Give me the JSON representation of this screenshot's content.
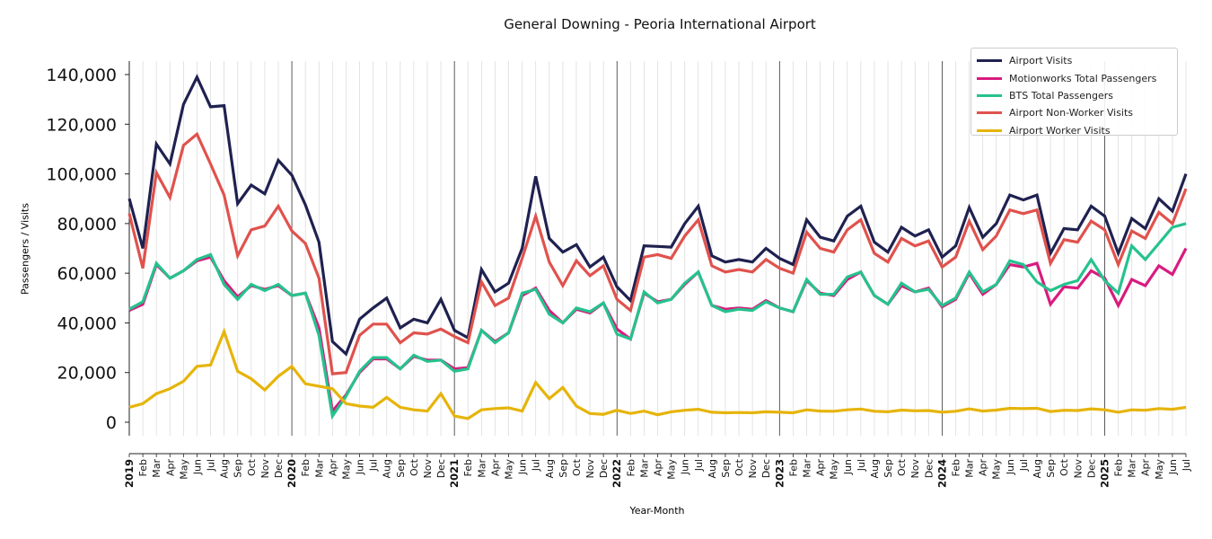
{
  "chart_data": {
    "type": "line",
    "title": "General Downing - Peoria International Airport",
    "xlabel": "Year-Month",
    "ylabel": "Passengers / Visits",
    "ylim": [
      -12000,
      145000
    ],
    "yticks": [
      0,
      20000,
      40000,
      60000,
      80000,
      100000,
      120000,
      140000
    ],
    "ytick_labels": [
      "0",
      "20,000",
      "40,000",
      "60,000",
      "80,000",
      "100,000",
      "120,000",
      "140,000"
    ],
    "start": {
      "year": 2019,
      "month": 1
    },
    "month_labels": [
      "Jan",
      "Feb",
      "Mar",
      "Apr",
      "May",
      "Jun",
      "Jul",
      "Aug",
      "Sep",
      "Oct",
      "Nov",
      "Dec"
    ],
    "legend_position": "top-right",
    "series": [
      {
        "name": "Airport Visits",
        "color": "#1f2150",
        "values": [
          90000,
          70000,
          112000,
          104000,
          128000,
          139000,
          127000,
          127500,
          88000,
          95500,
          92000,
          105500,
          99500,
          87500,
          72500,
          32500,
          27500,
          41500,
          46000,
          50000,
          38000,
          41500,
          40000,
          49500,
          37000,
          34000,
          61500,
          52500,
          56000,
          70000,
          99000,
          74000,
          68500,
          71500,
          62500,
          66500,
          54500,
          49000,
          71000,
          70800,
          70500,
          80000,
          87000,
          67000,
          64500,
          65500,
          64500,
          70000,
          66000,
          63500,
          81500,
          74500,
          73000,
          83000,
          87000,
          72500,
          68500,
          78500,
          75000,
          77500,
          66500,
          71000,
          86500,
          74500,
          80000,
          91500,
          89500,
          91500,
          68000,
          78000,
          77500,
          87000,
          83000,
          68000,
          82000,
          78000,
          90000,
          85000,
          100000
        ]
      },
      {
        "name": "Motionworks Total Passengers",
        "color": "#d81b7f",
        "values": [
          45000,
          47500,
          63500,
          58000,
          61000,
          65000,
          66500,
          57000,
          50500,
          55000,
          53500,
          55000,
          51000,
          52000,
          38000,
          4500,
          11000,
          20000,
          25500,
          25500,
          21500,
          26500,
          25000,
          25000,
          21500,
          22000,
          37000,
          32500,
          36000,
          51000,
          54000,
          45000,
          40000,
          45500,
          44000,
          48000,
          37500,
          33500,
          52000,
          48500,
          49500,
          55500,
          60500,
          47000,
          45500,
          46000,
          45500,
          49000,
          46000,
          44500,
          57000,
          52000,
          51000,
          57500,
          60500,
          51000,
          47500,
          55000,
          52500,
          54000,
          46500,
          49500,
          60000,
          51500,
          55500,
          63500,
          62500,
          64000,
          47500,
          54500,
          54000,
          61000,
          58000,
          47000,
          57500,
          55000,
          63000,
          59500,
          70000
        ]
      },
      {
        "name": "BTS Total Passengers",
        "color": "#26c28e",
        "values": [
          45500,
          48500,
          64000,
          58000,
          61000,
          65500,
          67500,
          55500,
          49500,
          55500,
          53000,
          55500,
          51000,
          52000,
          35000,
          2500,
          10500,
          20500,
          26000,
          26000,
          21500,
          27000,
          24500,
          25000,
          20500,
          21500,
          37000,
          32000,
          36000,
          52000,
          53500,
          43500,
          40000,
          46000,
          44500,
          48000,
          35500,
          33500,
          52500,
          48000,
          49500,
          56000,
          60500,
          47000,
          44500,
          45500,
          45000,
          48500,
          46000,
          44500,
          57500,
          51500,
          51500,
          58500,
          60500,
          51000,
          47500,
          56000,
          52500,
          53500,
          47000,
          50000,
          60500,
          52500,
          55500,
          65000,
          63500,
          56500,
          53000,
          55500,
          57000,
          65500,
          57000,
          52000,
          71000,
          65500,
          72000,
          78500,
          80000
        ]
      },
      {
        "name": "Airport Non-Worker Visits",
        "color": "#e0524d",
        "values": [
          84000,
          62000,
          100500,
          90500,
          111500,
          116000,
          104000,
          91500,
          67000,
          77500,
          79000,
          87000,
          77000,
          72000,
          58000,
          19500,
          20000,
          35000,
          39500,
          39500,
          32000,
          36000,
          35500,
          37500,
          34500,
          32000,
          56500,
          47000,
          50000,
          66000,
          83000,
          64500,
          55000,
          65000,
          59000,
          63000,
          49500,
          45000,
          66500,
          67500,
          66000,
          75000,
          81500,
          63000,
          60500,
          61500,
          60500,
          65500,
          62000,
          60000,
          76500,
          70000,
          68500,
          77500,
          81500,
          68000,
          64500,
          74000,
          71000,
          73000,
          62500,
          66500,
          81000,
          69500,
          75000,
          85500,
          84000,
          85500,
          64000,
          73500,
          72500,
          81000,
          77500,
          63500,
          77000,
          74000,
          84500,
          80000,
          94000
        ]
      },
      {
        "name": "Airport Worker Visits",
        "color": "#e6b40a",
        "values": [
          6000,
          7500,
          11500,
          13500,
          16500,
          22500,
          23000,
          36500,
          20500,
          17500,
          13000,
          18500,
          22500,
          15500,
          14500,
          13500,
          7500,
          6500,
          6000,
          10000,
          6000,
          5000,
          4500,
          11500,
          2500,
          1500,
          5000,
          5500,
          5800,
          4500,
          16000,
          9500,
          14000,
          6500,
          3500,
          3200,
          4800,
          3500,
          4500,
          3000,
          4200,
          4800,
          5200,
          4000,
          3800,
          3900,
          3800,
          4200,
          4000,
          3800,
          5000,
          4500,
          4400,
          5000,
          5300,
          4400,
          4200,
          4900,
          4600,
          4700,
          4000,
          4400,
          5400,
          4500,
          4900,
          5600,
          5500,
          5600,
          4300,
          4800,
          4700,
          5400,
          5000,
          4000,
          5000,
          4800,
          5500,
          5200,
          6000
        ]
      }
    ]
  }
}
